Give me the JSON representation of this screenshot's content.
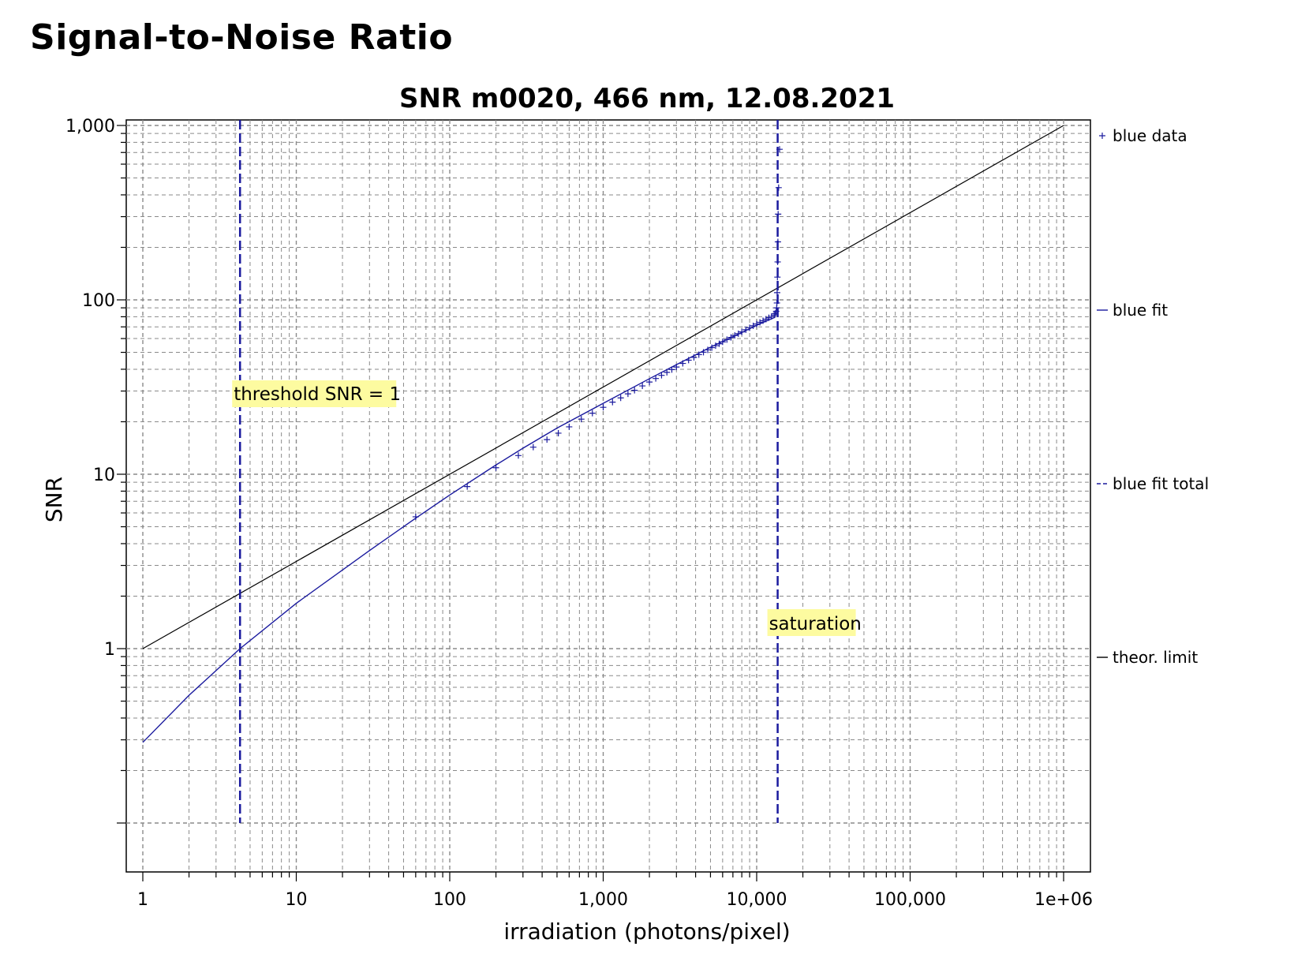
{
  "page": {
    "heading": "Signal-to-Noise Ratio"
  },
  "chart_data": {
    "type": "line",
    "title": "SNR m0020, 466 nm, 12.08.2021",
    "xlabel": "irradiation (photons/pixel)",
    "ylabel": "SNR",
    "xscale": "log",
    "yscale": "log",
    "xlim": [
      1,
      1000000
    ],
    "ylim": [
      0.1,
      1000
    ],
    "grid": true,
    "legend_position": "right",
    "x_tick_labels": [
      "1",
      "10",
      "100",
      "1,000",
      "10,000",
      "100,000",
      "1e+06"
    ],
    "x_tick_values": [
      1,
      10,
      100,
      1000,
      10000,
      100000,
      1000000
    ],
    "y_tick_labels": [
      "1",
      "10",
      "100",
      "1,000"
    ],
    "y_tick_values": [
      1,
      10,
      100,
      1000
    ],
    "colors": {
      "blue": "#1a1a9e",
      "black": "#000000",
      "grid": "#8a8a8a"
    },
    "series": [
      {
        "name": "blue data",
        "style": "marker-plus",
        "color": "#1a1a9e",
        "x": [
          60,
          130,
          200,
          280,
          350,
          430,
          510,
          600,
          720,
          850,
          1000,
          1150,
          1300,
          1450,
          1600,
          1800,
          2000,
          2200,
          2400,
          2600,
          2800,
          3000,
          3300,
          3600,
          3900,
          4200,
          4500,
          4800,
          5100,
          5400,
          5700,
          6000,
          6400,
          6800,
          7200,
          7600,
          8000,
          8500,
          9000,
          9500,
          10000,
          10500,
          11000,
          11500,
          12000,
          12500,
          13000,
          13200,
          13400,
          13500,
          13550,
          13600,
          13650,
          13700,
          13750,
          13800,
          13900,
          14100
        ],
        "y": [
          5.7,
          8.5,
          10.9,
          12.8,
          14.3,
          15.8,
          17.2,
          18.7,
          20.7,
          22.4,
          24.2,
          25.9,
          27.4,
          28.9,
          30.3,
          32.1,
          33.8,
          35.4,
          36.9,
          38.4,
          39.8,
          41.2,
          43.2,
          45.1,
          46.8,
          48.5,
          50.1,
          51.7,
          53.2,
          54.6,
          56.0,
          57.4,
          59.2,
          60.9,
          62.5,
          64.0,
          65.5,
          67.4,
          69.2,
          71.0,
          72.7,
          74.3,
          75.9,
          77.5,
          79.0,
          80.4,
          81.9,
          83.5,
          86.0,
          90.0,
          96.0,
          110.0,
          135.0,
          165.0,
          215.0,
          310.0,
          440.0,
          730.0
        ]
      },
      {
        "name": "blue fit",
        "style": "solid",
        "color": "#1a1a9e",
        "x": [
          1,
          2,
          4.3,
          10,
          30,
          60,
          100,
          200,
          300,
          500,
          1000,
          2000,
          3000,
          5000,
          8000,
          10000,
          13200
        ],
        "y": [
          0.29,
          0.54,
          1.0,
          1.82,
          3.65,
          5.6,
          7.6,
          11.3,
          14.1,
          18.4,
          25.5,
          35.3,
          42.5,
          53.5,
          65.0,
          71.5,
          79.5
        ]
      },
      {
        "name": "blue fit total",
        "style": "dashed",
        "color": "#1a1a9e",
        "x": [
          4.3,
          4.3
        ],
        "y": [
          0.1,
          1000
        ]
      },
      {
        "name": "theor. limit",
        "style": "solid",
        "color": "#000000",
        "x": [
          1,
          1000000
        ],
        "y": [
          1,
          1000
        ]
      }
    ],
    "saturation_line_x": 13700,
    "annotations": [
      {
        "text": "threshold SNR = 1",
        "x": 4.3,
        "y": 30
      },
      {
        "text": "saturation",
        "x": 13700,
        "y": 1.35
      }
    ]
  }
}
